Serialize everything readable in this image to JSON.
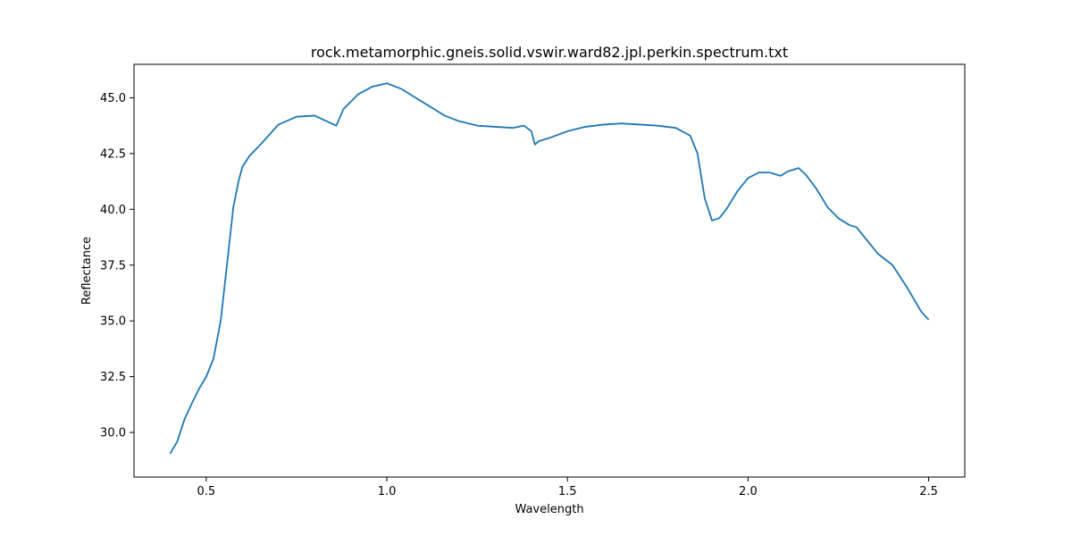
{
  "chart_data": {
    "type": "line",
    "title": "rock.metamorphic.gneis.solid.vswir.ward82.jpl.perkin.spectrum.txt",
    "xlabel": "Wavelength",
    "ylabel": "Reflectance",
    "xlim": [
      0.3,
      2.6
    ],
    "ylim": [
      28.0,
      46.5
    ],
    "xticks": [
      0.5,
      1.0,
      1.5,
      2.0,
      2.5
    ],
    "xtick_labels": [
      "0.5",
      "1.0",
      "1.5",
      "2.0",
      "2.5"
    ],
    "yticks": [
      30.0,
      32.5,
      35.0,
      37.5,
      40.0,
      42.5,
      45.0
    ],
    "ytick_labels": [
      "30.0",
      "32.5",
      "35.0",
      "37.5",
      "40.0",
      "42.5",
      "45.0"
    ],
    "grid": false,
    "series": [
      {
        "color": "#1f77b4",
        "x": [
          0.4,
          0.42,
          0.44,
          0.46,
          0.48,
          0.5,
          0.52,
          0.54,
          0.56,
          0.575,
          0.59,
          0.6,
          0.62,
          0.65,
          0.7,
          0.75,
          0.8,
          0.84,
          0.86,
          0.88,
          0.92,
          0.96,
          1.0,
          1.04,
          1.08,
          1.12,
          1.16,
          1.2,
          1.25,
          1.3,
          1.35,
          1.38,
          1.4,
          1.41,
          1.42,
          1.45,
          1.5,
          1.55,
          1.6,
          1.65,
          1.7,
          1.75,
          1.8,
          1.84,
          1.86,
          1.88,
          1.9,
          1.92,
          1.94,
          1.97,
          2.0,
          2.03,
          2.06,
          2.09,
          2.11,
          2.14,
          2.16,
          2.19,
          2.22,
          2.25,
          2.28,
          2.3,
          2.33,
          2.36,
          2.4,
          2.44,
          2.48,
          2.5
        ],
        "y": [
          29.05,
          29.6,
          30.6,
          31.3,
          31.95,
          32.5,
          33.3,
          35.0,
          37.9,
          40.1,
          41.3,
          41.9,
          42.4,
          42.9,
          43.8,
          44.15,
          44.2,
          43.9,
          43.75,
          44.5,
          45.15,
          45.5,
          45.65,
          45.4,
          45.0,
          44.6,
          44.2,
          43.95,
          43.75,
          43.7,
          43.65,
          43.75,
          43.5,
          42.9,
          43.05,
          43.2,
          43.5,
          43.7,
          43.8,
          43.85,
          43.8,
          43.75,
          43.65,
          43.3,
          42.5,
          40.5,
          39.5,
          39.6,
          40.0,
          40.8,
          41.4,
          41.65,
          41.65,
          41.5,
          41.7,
          41.85,
          41.55,
          40.9,
          40.1,
          39.6,
          39.3,
          39.2,
          38.6,
          38.0,
          37.5,
          36.5,
          35.4,
          35.05
        ]
      }
    ]
  }
}
